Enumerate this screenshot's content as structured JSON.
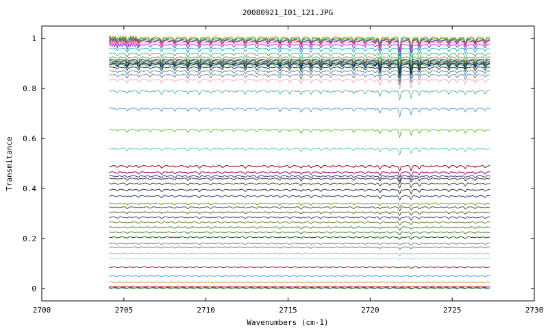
{
  "chart_data": {
    "type": "line",
    "title": "20080921_I01_121.JPG",
    "xlabel": "Wavenumbers (cm-1)",
    "ylabel": "Transmitance",
    "xlim": [
      2700,
      2730
    ],
    "ylim": [
      -0.05,
      1.05
    ],
    "x_range_of_data": [
      2704.1,
      2727.3
    ],
    "xticks": [
      2700,
      2705,
      2710,
      2715,
      2720,
      2725,
      2730
    ],
    "yticks": [
      0,
      0.2,
      0.4,
      0.6,
      0.8,
      1
    ],
    "xtick_labels": [
      "2700",
      "2705",
      "2710",
      "2715",
      "2720",
      "2725",
      "2730"
    ],
    "ytick_labels": [
      "0",
      "0.2",
      "0.4",
      "0.6",
      "0.8",
      "1"
    ],
    "grid": false,
    "legend": "none",
    "absorption_lines_cm1": [
      2704.6,
      2705.2,
      2705.9,
      2706.6,
      2707.3,
      2708.1,
      2708.9,
      2709.6,
      2710.3,
      2711.0,
      2711.7,
      2712.4,
      2713.1,
      2713.8,
      2714.5,
      2715.1,
      2715.8,
      2716.4,
      2717.0,
      2717.6,
      2718.3,
      2719.0,
      2719.7,
      2720.3,
      2720.6,
      2721.2,
      2721.8,
      2722.5,
      2723.0,
      2723.6,
      2724.2,
      2724.8,
      2725.3,
      2725.8,
      2726.4,
      2727.0
    ],
    "series": [
      {
        "baseline": 1.005,
        "color": "#d4a017"
      },
      {
        "baseline": 1.0,
        "color": "#1a9e3a"
      },
      {
        "baseline": 0.995,
        "color": "#3355cc"
      },
      {
        "baseline": 0.99,
        "color": "#cc3333"
      },
      {
        "baseline": 0.985,
        "color": "#ff69b4"
      },
      {
        "baseline": 0.975,
        "color": "#8a2be2"
      },
      {
        "baseline": 0.96,
        "color": "#20b2aa"
      },
      {
        "baseline": 0.94,
        "color": "#3cb371"
      },
      {
        "baseline": 0.925,
        "color": "#6b8e23"
      },
      {
        "baseline": 0.915,
        "color": "#1c1c1c"
      },
      {
        "baseline": 0.91,
        "color": "#2e8b57"
      },
      {
        "baseline": 0.905,
        "color": "#555555"
      },
      {
        "baseline": 0.9,
        "color": "#0000cd"
      },
      {
        "baseline": 0.895,
        "color": "#006400"
      },
      {
        "baseline": 0.885,
        "color": "#333333"
      },
      {
        "baseline": 0.87,
        "color": "#4682b4"
      },
      {
        "baseline": 0.855,
        "color": "#708090"
      },
      {
        "baseline": 0.835,
        "color": "#f4a6c0"
      },
      {
        "baseline": 0.79,
        "color": "#5fb39a"
      },
      {
        "baseline": 0.72,
        "color": "#5b9bd5"
      },
      {
        "baseline": 0.635,
        "color": "#66bb22"
      },
      {
        "baseline": 0.56,
        "color": "#66ccaa"
      },
      {
        "baseline": 0.49,
        "color": "#8b0000"
      },
      {
        "baseline": 0.465,
        "color": "#8b008b"
      },
      {
        "baseline": 0.45,
        "color": "#1e3c8c"
      },
      {
        "baseline": 0.44,
        "color": "#5a2a2a"
      },
      {
        "baseline": 0.42,
        "color": "#2f4f2f"
      },
      {
        "baseline": 0.395,
        "color": "#333333"
      },
      {
        "baseline": 0.37,
        "color": "#23406e"
      },
      {
        "baseline": 0.34,
        "color": "#8b8b00"
      },
      {
        "baseline": 0.325,
        "color": "#2e6b2e"
      },
      {
        "baseline": 0.305,
        "color": "#6b4423"
      },
      {
        "baseline": 0.285,
        "color": "#3c3c8c"
      },
      {
        "baseline": 0.265,
        "color": "#7a7a3a"
      },
      {
        "baseline": 0.245,
        "color": "#2e8b2e"
      },
      {
        "baseline": 0.225,
        "color": "#556b2f"
      },
      {
        "baseline": 0.205,
        "color": "#006400"
      },
      {
        "baseline": 0.18,
        "color": "#808080"
      },
      {
        "baseline": 0.165,
        "color": "#4f7f7f"
      },
      {
        "baseline": 0.14,
        "color": "#a9a9a9"
      },
      {
        "baseline": 0.12,
        "color": "#add8e6"
      },
      {
        "baseline": 0.085,
        "color": "#8b0000"
      },
      {
        "baseline": 0.05,
        "color": "#1e90ff"
      },
      {
        "baseline": 0.025,
        "color": "#cd853f"
      },
      {
        "baseline": 0.008,
        "color": "#b22222"
      },
      {
        "baseline": 0.003,
        "color": "#9400d3"
      },
      {
        "baseline": 0.001,
        "color": "#228b22"
      }
    ]
  }
}
